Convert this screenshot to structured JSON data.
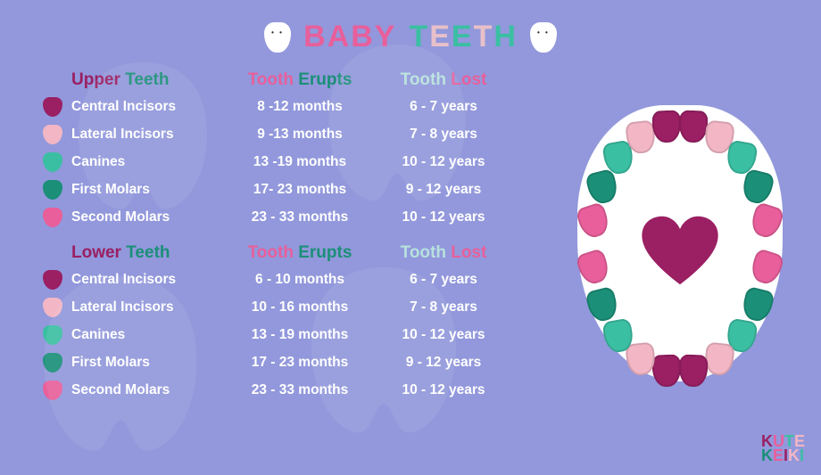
{
  "title": {
    "word1": {
      "text": "BABY",
      "colors": [
        "#e85f9b",
        "#e85f9b",
        "#e85f9b",
        "#e85f9b"
      ]
    },
    "word2": {
      "text": "TEETH",
      "colors": [
        "#3bbfa3",
        "#e8c0c9",
        "#3bbfa3",
        "#e8c0c9",
        "#3bbfa3"
      ]
    },
    "fontsize": 34
  },
  "colors": {
    "bg": "#9298db",
    "white": "#ffffff",
    "heart": "#9a1f63",
    "text": "#ffffff"
  },
  "header_palette": {
    "name1": "#9a1f63",
    "name2": "#1b8f78",
    "erupts1": "#e85f9b",
    "erupts2": "#1b8f78",
    "lost1": "#b7e1de",
    "lost2": "#e85f9b"
  },
  "tables": [
    {
      "head": {
        "name": [
          "Upper",
          "Teeth"
        ],
        "erupts": [
          "Tooth",
          "Erupts"
        ],
        "lost": [
          "Tooth",
          "Lost"
        ]
      },
      "rows": [
        {
          "color": "#9a1f63",
          "name": "Central Incisors",
          "erupts": "8 -12 months",
          "lost": "6 - 7 years"
        },
        {
          "color": "#f2b6c5",
          "name": "Lateral Incisors",
          "erupts": "9 -13 months",
          "lost": "7 - 8 years"
        },
        {
          "color": "#3bbfa3",
          "name": "Canines",
          "erupts": "13 -19 months",
          "lost": "10 - 12 years"
        },
        {
          "color": "#1b8f78",
          "name": "First Molars",
          "erupts": "17- 23 months",
          "lost": "9 - 12 years"
        },
        {
          "color": "#e85f9b",
          "name": "Second Molars",
          "erupts": "23 - 33 months",
          "lost": "10 - 12 years"
        }
      ]
    },
    {
      "head": {
        "name": [
          "Lower",
          "Teeth"
        ],
        "erupts": [
          "Tooth",
          "Erupts"
        ],
        "lost": [
          "Tooth",
          "Lost"
        ]
      },
      "rows": [
        {
          "color": "#9a1f63",
          "name": "Central Incisors",
          "erupts": "6 - 10 months",
          "lost": "6 - 7 years"
        },
        {
          "color": "#f2b6c5",
          "name": "Lateral Incisors",
          "erupts": "10 - 16 months",
          "lost": "7 - 8 years"
        },
        {
          "color": "#3bbfa3",
          "name": "Canines",
          "erupts": "13 - 19 months",
          "lost": "10 - 12 years"
        },
        {
          "color": "#1b8f78",
          "name": "First Molars",
          "erupts": "17 - 23 months",
          "lost": "9 - 12 years"
        },
        {
          "color": "#e85f9b",
          "name": "Second Molars",
          "erupts": "23 - 33 months",
          "lost": "10 - 12 years"
        }
      ]
    }
  ],
  "diagram": {
    "heart_color": "#9a1f63",
    "mouth_bg": "#ffffff",
    "teeth_colors_upper": [
      "#e85f9b",
      "#1b8f78",
      "#3bbfa3",
      "#f2b6c5",
      "#9a1f63",
      "#9a1f63",
      "#f2b6c5",
      "#3bbfa3",
      "#1b8f78",
      "#e85f9b"
    ],
    "teeth_colors_lower": [
      "#e85f9b",
      "#1b8f78",
      "#3bbfa3",
      "#f2b6c5",
      "#9a1f63",
      "#9a1f63",
      "#f2b6c5",
      "#3bbfa3",
      "#1b8f78",
      "#e85f9b"
    ]
  },
  "logo": {
    "line1": {
      "text": "KUTE",
      "colors": [
        "#9a1f63",
        "#e85f9b",
        "#3bbfa3",
        "#f2b6c5"
      ]
    },
    "line2": {
      "text": "KEIKI",
      "colors": [
        "#1b8f78",
        "#e85f9b",
        "#9a1f63",
        "#f2b6c5",
        "#3bbfa3"
      ]
    }
  }
}
